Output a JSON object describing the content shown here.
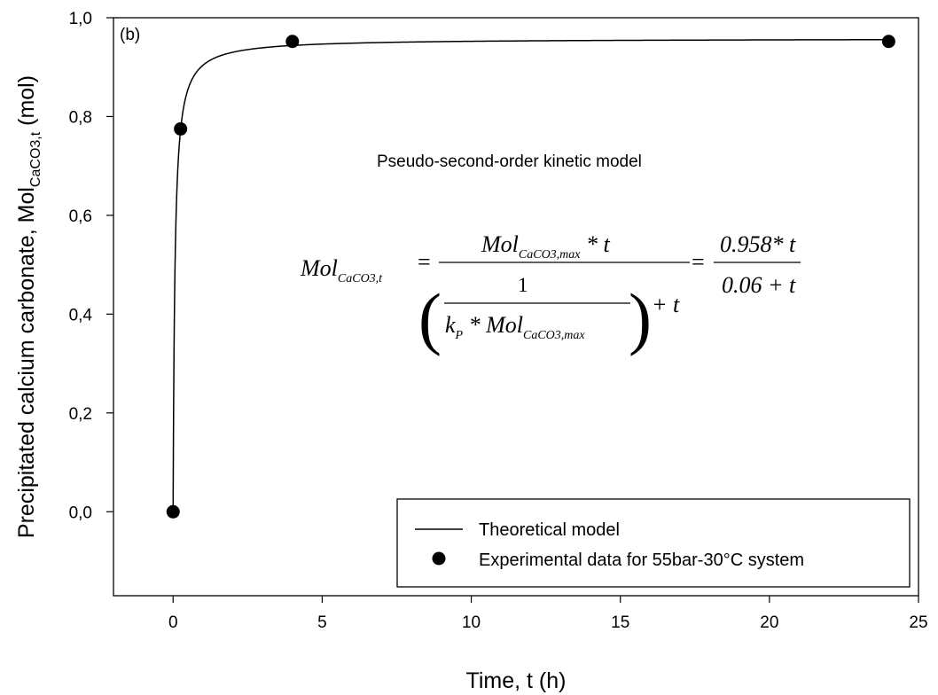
{
  "chart_data": {
    "type": "scatter",
    "panel_label": "(b)",
    "xlabel": "Time, t (h)",
    "ylabel": {
      "prefix": "Precipitated calcium carbonate, Mol",
      "subscript": "CaCO3,t",
      "suffix": " (mol)"
    },
    "xlim": [
      -2,
      25
    ],
    "ylim": [
      -0.17,
      1.0
    ],
    "x_ticks": [
      0,
      5,
      10,
      15,
      20,
      25
    ],
    "x_tick_labels": [
      "0",
      "5",
      "10",
      "15",
      "20",
      "25"
    ],
    "y_ticks": [
      0.0,
      0.2,
      0.4,
      0.6,
      0.8,
      1.0
    ],
    "y_tick_labels": [
      "0,0",
      "0,2",
      "0,4",
      "0,6",
      "0,8",
      "1,0"
    ],
    "annotation": "Pseudo-second-order kinetic model",
    "equation": {
      "lhs_main": "Mol",
      "lhs_sub": "CaCO3,t",
      "frac1_num_main": "Mol",
      "frac1_num_sub": "CaCO3,max",
      "frac1_num_tail": " * t",
      "inner_num": "1",
      "inner_den_k": "k",
      "inner_den_k_sub": "P",
      "inner_den_mid": " * Mol",
      "inner_den_sub": "CaCO3,max",
      "plus_t": "+ t",
      "eq_sign": "=",
      "frac2_num": "0.958* t",
      "frac2_den": "0.06 + t"
    },
    "model": {
      "qmax": 0.958,
      "k": 0.06
    },
    "series": [
      {
        "name": "Theoretical model",
        "style": "line",
        "x_range": [
          0,
          24
        ]
      },
      {
        "name": "Experimental data for 55bar-30°C system",
        "style": "marker",
        "points": [
          {
            "x": 0,
            "y": 0.0
          },
          {
            "x": 0.25,
            "y": 0.775
          },
          {
            "x": 4,
            "y": 0.952
          },
          {
            "x": 24,
            "y": 0.952
          }
        ]
      }
    ],
    "legend_position": "bottom-right",
    "grid": false,
    "colors": {
      "line": "#000000",
      "marker": "#000000"
    }
  }
}
